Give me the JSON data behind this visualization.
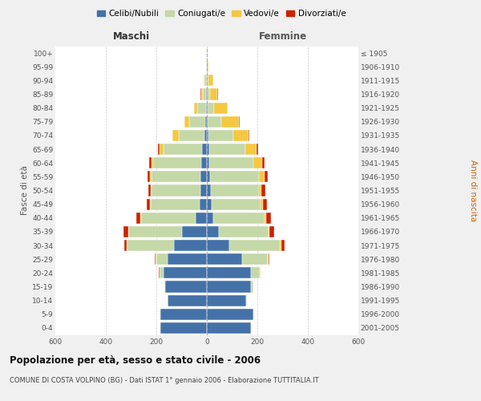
{
  "age_groups": [
    "0-4",
    "5-9",
    "10-14",
    "15-19",
    "20-24",
    "25-29",
    "30-34",
    "35-39",
    "40-44",
    "45-49",
    "50-54",
    "55-59",
    "60-64",
    "65-69",
    "70-74",
    "75-79",
    "80-84",
    "85-89",
    "90-94",
    "95-99",
    "100+"
  ],
  "birth_years": [
    "2001-2005",
    "1996-2000",
    "1991-1995",
    "1986-1990",
    "1981-1985",
    "1976-1980",
    "1971-1975",
    "1966-1970",
    "1961-1965",
    "1956-1960",
    "1951-1955",
    "1946-1950",
    "1941-1945",
    "1936-1940",
    "1931-1935",
    "1926-1930",
    "1921-1925",
    "1916-1920",
    "1911-1915",
    "1906-1910",
    "≤ 1905"
  ],
  "males": {
    "celibe": [
      185,
      185,
      155,
      165,
      170,
      155,
      130,
      100,
      45,
      28,
      25,
      25,
      22,
      18,
      10,
      5,
      3,
      2,
      1,
      0,
      0
    ],
    "coniugato": [
      2,
      2,
      2,
      4,
      18,
      45,
      185,
      210,
      215,
      195,
      195,
      195,
      190,
      155,
      100,
      65,
      35,
      15,
      8,
      2,
      0
    ],
    "vedovo": [
      0,
      0,
      0,
      0,
      0,
      2,
      2,
      2,
      3,
      3,
      3,
      5,
      8,
      15,
      25,
      18,
      12,
      5,
      3,
      0,
      0
    ],
    "divorziato": [
      0,
      0,
      0,
      0,
      2,
      5,
      10,
      18,
      15,
      12,
      10,
      10,
      8,
      5,
      3,
      2,
      2,
      2,
      0,
      0,
      0
    ]
  },
  "females": {
    "nubile": [
      175,
      185,
      155,
      175,
      175,
      140,
      90,
      48,
      25,
      18,
      15,
      12,
      10,
      8,
      5,
      3,
      2,
      2,
      1,
      1,
      0
    ],
    "coniugata": [
      2,
      2,
      3,
      10,
      35,
      100,
      200,
      195,
      205,
      195,
      190,
      195,
      175,
      145,
      100,
      55,
      25,
      10,
      5,
      0,
      0
    ],
    "vedova": [
      0,
      0,
      0,
      0,
      2,
      3,
      5,
      5,
      5,
      8,
      12,
      20,
      35,
      45,
      60,
      70,
      55,
      30,
      20,
      5,
      2
    ],
    "divorziata": [
      0,
      0,
      0,
      0,
      2,
      5,
      12,
      18,
      20,
      18,
      15,
      15,
      10,
      5,
      3,
      2,
      2,
      2,
      0,
      0,
      0
    ]
  },
  "colors": {
    "celibe": "#4472a8",
    "coniugato": "#c5d8a8",
    "vedovo": "#f5c842",
    "divorziato": "#cc2200"
  },
  "xlim": 600,
  "title": "Popolazione per età, sesso e stato civile - 2006",
  "subtitle": "COMUNE DI COSTA VOLPINO (BG) - Dati ISTAT 1° gennaio 2006 - Elaborazione TUTTITALIA.IT",
  "ylabel_left": "Fasce di età",
  "ylabel_right": "Anni di nascita",
  "xlabel_left": "Maschi",
  "xlabel_right": "Femmine",
  "legend_labels": [
    "Celibi/Nubili",
    "Coniugati/e",
    "Vedovi/e",
    "Divorziati/e"
  ],
  "bg_color": "#f0f0f0",
  "plot_bg_color": "#ffffff"
}
